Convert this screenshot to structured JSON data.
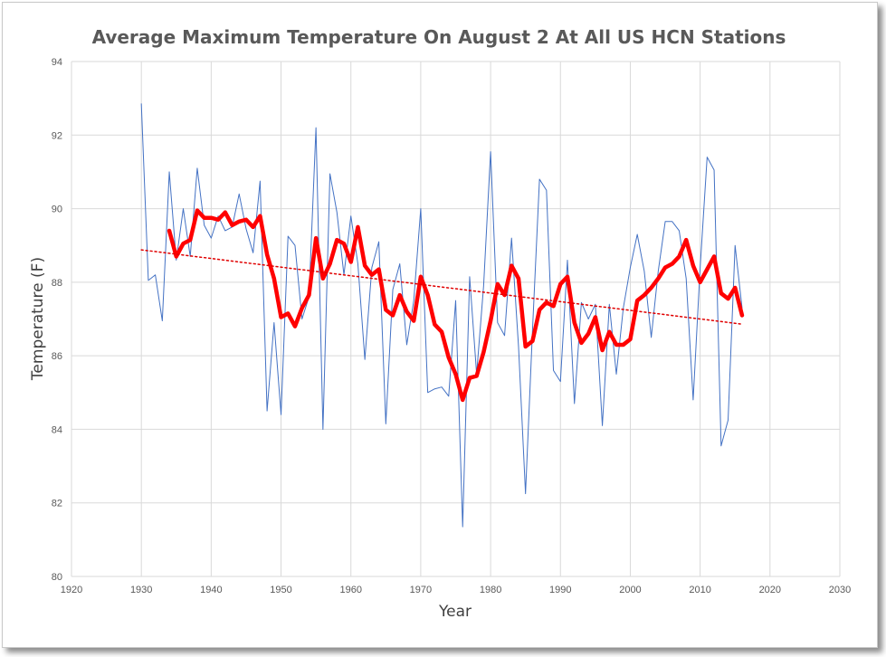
{
  "chart_data": {
    "type": "line",
    "title": "Average Maximum Temperature On August 2 At All US HCN Stations",
    "xlabel": "Year",
    "ylabel": "Temperature (F)",
    "xlim": [
      1920,
      2030
    ],
    "ylim": [
      80,
      94
    ],
    "xticks": [
      1920,
      1930,
      1940,
      1950,
      1960,
      1970,
      1980,
      1990,
      2000,
      2010,
      2020,
      2030
    ],
    "yticks": [
      80,
      82,
      84,
      86,
      88,
      90,
      92,
      94
    ],
    "grid": true,
    "legend": "none",
    "series": [
      {
        "style": "thin-line",
        "color": "#4472C4",
        "x": [
          1930,
          1931,
          1932,
          1933,
          1934,
          1935,
          1936,
          1937,
          1938,
          1939,
          1940,
          1941,
          1942,
          1943,
          1944,
          1945,
          1946,
          1947,
          1948,
          1949,
          1950,
          1951,
          1952,
          1953,
          1954,
          1955,
          1956,
          1957,
          1958,
          1959,
          1960,
          1961,
          1962,
          1963,
          1964,
          1965,
          1966,
          1967,
          1968,
          1969,
          1970,
          1971,
          1972,
          1973,
          1974,
          1975,
          1976,
          1977,
          1978,
          1979,
          1980,
          1981,
          1982,
          1983,
          1984,
          1985,
          1986,
          1987,
          1988,
          1989,
          1990,
          1991,
          1992,
          1993,
          1994,
          1995,
          1996,
          1997,
          1998,
          1999,
          2000,
          2001,
          2002,
          2003,
          2004,
          2005,
          2006,
          2007,
          2008,
          2009,
          2010,
          2011,
          2012,
          2013,
          2014,
          2015,
          2016
        ],
        "y": [
          92.85,
          88.05,
          88.2,
          86.95,
          91.0,
          88.6,
          90.0,
          88.7,
          91.1,
          89.55,
          89.2,
          89.8,
          89.4,
          89.5,
          90.4,
          89.45,
          88.8,
          90.75,
          84.5,
          86.9,
          84.4,
          89.25,
          89.0,
          87.0,
          87.6,
          92.2,
          84.0,
          90.95,
          89.9,
          88.2,
          89.8,
          88.5,
          85.9,
          88.4,
          89.1,
          84.15,
          87.8,
          88.5,
          86.3,
          87.5,
          90.0,
          85.0,
          85.1,
          85.15,
          84.9,
          87.5,
          81.35,
          88.15,
          85.5,
          87.9,
          91.55,
          86.9,
          86.55,
          89.2,
          86.25,
          82.25,
          86.7,
          90.8,
          90.5,
          85.6,
          85.3,
          88.6,
          84.7,
          87.45,
          87.0,
          87.4,
          84.1,
          87.4,
          85.5,
          87.3,
          88.4,
          89.3,
          88.3,
          86.5,
          88.3,
          89.65,
          89.65,
          89.4,
          88.1,
          84.8,
          88.4,
          91.4,
          91.05,
          83.55,
          84.25,
          89.0,
          87.3
        ]
      },
      {
        "style": "thick-line",
        "color": "#FF0000",
        "x": [
          1934,
          1935,
          1936,
          1937,
          1938,
          1939,
          1940,
          1941,
          1942,
          1943,
          1944,
          1945,
          1946,
          1947,
          1948,
          1949,
          1950,
          1951,
          1952,
          1953,
          1954,
          1955,
          1956,
          1957,
          1958,
          1959,
          1960,
          1961,
          1962,
          1963,
          1964,
          1965,
          1966,
          1967,
          1968,
          1969,
          1970,
          1971,
          1972,
          1973,
          1974,
          1975,
          1976,
          1977,
          1978,
          1979,
          1980,
          1981,
          1982,
          1983,
          1984,
          1985,
          1986,
          1987,
          1988,
          1989,
          1990,
          1991,
          1992,
          1993,
          1994,
          1995,
          1996,
          1997,
          1998,
          1999,
          2000,
          2001,
          2002,
          2003,
          2004,
          2005,
          2006,
          2007,
          2008,
          2009,
          2010,
          2011,
          2012,
          2013,
          2014,
          2015,
          2016
        ],
        "y": [
          89.4,
          88.7,
          89.05,
          89.15,
          89.95,
          89.75,
          89.75,
          89.7,
          89.9,
          89.55,
          89.65,
          89.7,
          89.5,
          89.8,
          88.75,
          88.1,
          87.05,
          87.15,
          86.8,
          87.3,
          87.65,
          89.2,
          88.1,
          88.5,
          89.15,
          89.05,
          88.55,
          89.5,
          88.45,
          88.2,
          88.35,
          87.25,
          87.1,
          87.65,
          87.2,
          86.95,
          88.15,
          87.65,
          86.85,
          86.65,
          85.95,
          85.5,
          84.8,
          85.4,
          85.45,
          86.1,
          86.95,
          87.95,
          87.65,
          88.45,
          88.1,
          86.25,
          86.4,
          87.25,
          87.45,
          87.35,
          87.95,
          88.15,
          86.9,
          86.35,
          86.6,
          87.05,
          86.15,
          86.65,
          86.3,
          86.3,
          86.45,
          87.5,
          87.65,
          87.85,
          88.1,
          88.4,
          88.5,
          88.7,
          89.15,
          88.45,
          88.0,
          88.35,
          88.7,
          87.7,
          87.55,
          87.85,
          87.1
        ]
      },
      {
        "style": "dotted-trendline",
        "color": "#E00000",
        "x": [
          1930,
          2016
        ],
        "y": [
          88.88,
          86.86
        ]
      }
    ]
  }
}
